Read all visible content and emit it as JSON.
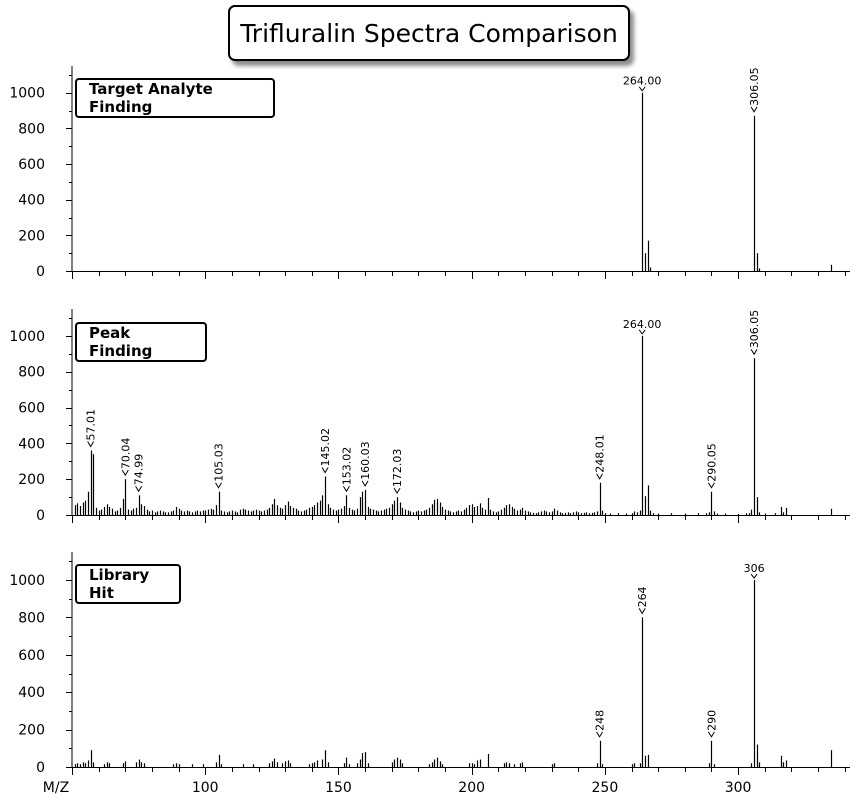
{
  "title": "Trifluralin Spectra Comparison",
  "chart_data": [
    {
      "type": "bar",
      "panel": "Target Analyte Finding",
      "x_range": [
        50,
        342
      ],
      "ylim": [
        0,
        1150
      ],
      "yticks": [
        0,
        200,
        400,
        600,
        800,
        1000
      ],
      "xticks": [
        100,
        150,
        200,
        250,
        300
      ],
      "xlabel": "M/Z",
      "peaks": [
        [
          264,
          1000
        ],
        [
          265,
          100
        ],
        [
          266,
          170
        ],
        [
          267,
          20
        ],
        [
          306,
          870
        ],
        [
          307,
          100
        ],
        [
          308,
          15
        ],
        [
          335,
          35
        ]
      ],
      "labels": [
        {
          "x": 264,
          "y": 1000,
          "text": "264.00",
          "rot": 0
        },
        {
          "x": 306,
          "y": 870,
          "text": "306.05",
          "rot": -90
        }
      ]
    },
    {
      "type": "bar",
      "panel": "Peak Finding",
      "x_range": [
        50,
        342
      ],
      "ylim": [
        0,
        1150
      ],
      "yticks": [
        0,
        200,
        400,
        600,
        800,
        1000
      ],
      "xticks": [
        100,
        150,
        200,
        250,
        300
      ],
      "xlabel": "M/Z",
      "peaks": [
        [
          51,
          55
        ],
        [
          52,
          65
        ],
        [
          53,
          50
        ],
        [
          54,
          70
        ],
        [
          55,
          80
        ],
        [
          56,
          130
        ],
        [
          57,
          360
        ],
        [
          58,
          340
        ],
        [
          59,
          40
        ],
        [
          60,
          25
        ],
        [
          61,
          30
        ],
        [
          62,
          45
        ],
        [
          63,
          60
        ],
        [
          64,
          45
        ],
        [
          65,
          35
        ],
        [
          66,
          20
        ],
        [
          67,
          25
        ],
        [
          68,
          40
        ],
        [
          69,
          90
        ],
        [
          70,
          200
        ],
        [
          71,
          30
        ],
        [
          72,
          25
        ],
        [
          73,
          35
        ],
        [
          74,
          40
        ],
        [
          75,
          110
        ],
        [
          76,
          60
        ],
        [
          77,
          50
        ],
        [
          78,
          30
        ],
        [
          79,
          20
        ],
        [
          80,
          25
        ],
        [
          81,
          15
        ],
        [
          82,
          20
        ],
        [
          83,
          25
        ],
        [
          84,
          20
        ],
        [
          85,
          15
        ],
        [
          86,
          15
        ],
        [
          87,
          20
        ],
        [
          88,
          25
        ],
        [
          89,
          45
        ],
        [
          90,
          35
        ],
        [
          91,
          25
        ],
        [
          92,
          20
        ],
        [
          93,
          25
        ],
        [
          94,
          20
        ],
        [
          95,
          15
        ],
        [
          96,
          20
        ],
        [
          97,
          25
        ],
        [
          98,
          20
        ],
        [
          99,
          25
        ],
        [
          100,
          25
        ],
        [
          101,
          30
        ],
        [
          102,
          35
        ],
        [
          103,
          30
        ],
        [
          104,
          55
        ],
        [
          105,
          130
        ],
        [
          106,
          25
        ],
        [
          107,
          20
        ],
        [
          108,
          15
        ],
        [
          109,
          20
        ],
        [
          110,
          25
        ],
        [
          111,
          20
        ],
        [
          112,
          15
        ],
        [
          113,
          30
        ],
        [
          114,
          35
        ],
        [
          115,
          30
        ],
        [
          116,
          25
        ],
        [
          117,
          20
        ],
        [
          118,
          25
        ],
        [
          119,
          30
        ],
        [
          120,
          25
        ],
        [
          121,
          20
        ],
        [
          122,
          25
        ],
        [
          123,
          30
        ],
        [
          124,
          40
        ],
        [
          125,
          60
        ],
        [
          126,
          90
        ],
        [
          127,
          55
        ],
        [
          128,
          40
        ],
        [
          129,
          35
        ],
        [
          130,
          55
        ],
        [
          131,
          75
        ],
        [
          132,
          50
        ],
        [
          133,
          40
        ],
        [
          134,
          35
        ],
        [
          135,
          25
        ],
        [
          136,
          20
        ],
        [
          137,
          25
        ],
        [
          138,
          30
        ],
        [
          139,
          40
        ],
        [
          140,
          45
        ],
        [
          141,
          55
        ],
        [
          142,
          70
        ],
        [
          143,
          80
        ],
        [
          144,
          110
        ],
        [
          145,
          215
        ],
        [
          146,
          60
        ],
        [
          147,
          40
        ],
        [
          148,
          30
        ],
        [
          149,
          25
        ],
        [
          150,
          30
        ],
        [
          151,
          35
        ],
        [
          152,
          50
        ],
        [
          153,
          110
        ],
        [
          154,
          40
        ],
        [
          155,
          30
        ],
        [
          156,
          25
        ],
        [
          157,
          35
        ],
        [
          158,
          100
        ],
        [
          159,
          130
        ],
        [
          160,
          140
        ],
        [
          161,
          45
        ],
        [
          162,
          35
        ],
        [
          163,
          30
        ],
        [
          164,
          25
        ],
        [
          165,
          20
        ],
        [
          166,
          25
        ],
        [
          167,
          30
        ],
        [
          168,
          35
        ],
        [
          169,
          40
        ],
        [
          170,
          60
        ],
        [
          171,
          80
        ],
        [
          172,
          100
        ],
        [
          173,
          70
        ],
        [
          174,
          40
        ],
        [
          175,
          30
        ],
        [
          176,
          25
        ],
        [
          177,
          20
        ],
        [
          178,
          15
        ],
        [
          179,
          20
        ],
        [
          180,
          25
        ],
        [
          181,
          20
        ],
        [
          182,
          25
        ],
        [
          183,
          30
        ],
        [
          184,
          40
        ],
        [
          185,
          60
        ],
        [
          186,
          85
        ],
        [
          187,
          90
        ],
        [
          188,
          70
        ],
        [
          189,
          45
        ],
        [
          190,
          30
        ],
        [
          191,
          25
        ],
        [
          192,
          20
        ],
        [
          193,
          15
        ],
        [
          194,
          20
        ],
        [
          195,
          25
        ],
        [
          196,
          20
        ],
        [
          197,
          30
        ],
        [
          198,
          40
        ],
        [
          199,
          55
        ],
        [
          200,
          60
        ],
        [
          201,
          45
        ],
        [
          202,
          50
        ],
        [
          203,
          65
        ],
        [
          204,
          40
        ],
        [
          205,
          30
        ],
        [
          206,
          95
        ],
        [
          207,
          30
        ],
        [
          208,
          20
        ],
        [
          209,
          15
        ],
        [
          210,
          20
        ],
        [
          211,
          30
        ],
        [
          212,
          40
        ],
        [
          213,
          55
        ],
        [
          214,
          60
        ],
        [
          215,
          45
        ],
        [
          216,
          35
        ],
        [
          217,
          25
        ],
        [
          218,
          30
        ],
        [
          219,
          40
        ],
        [
          220,
          25
        ],
        [
          221,
          20
        ],
        [
          222,
          15
        ],
        [
          223,
          12
        ],
        [
          224,
          10
        ],
        [
          225,
          15
        ],
        [
          226,
          20
        ],
        [
          227,
          25
        ],
        [
          228,
          20
        ],
        [
          229,
          15
        ],
        [
          230,
          20
        ],
        [
          231,
          35
        ],
        [
          232,
          25
        ],
        [
          233,
          15
        ],
        [
          234,
          10
        ],
        [
          235,
          12
        ],
        [
          236,
          15
        ],
        [
          237,
          10
        ],
        [
          238,
          15
        ],
        [
          239,
          20
        ],
        [
          240,
          15
        ],
        [
          241,
          10
        ],
        [
          242,
          12
        ],
        [
          243,
          15
        ],
        [
          244,
          10
        ],
        [
          245,
          12
        ],
        [
          246,
          15
        ],
        [
          247,
          20
        ],
        [
          248,
          180
        ],
        [
          249,
          25
        ],
        [
          250,
          10
        ],
        [
          252,
          8
        ],
        [
          255,
          10
        ],
        [
          258,
          8
        ],
        [
          260,
          10
        ],
        [
          261,
          20
        ],
        [
          262,
          15
        ],
        [
          263,
          25
        ],
        [
          264,
          1000
        ],
        [
          265,
          105
        ],
        [
          266,
          165
        ],
        [
          267,
          25
        ],
        [
          268,
          10
        ],
        [
          270,
          8
        ],
        [
          275,
          10
        ],
        [
          280,
          8
        ],
        [
          285,
          10
        ],
        [
          288,
          10
        ],
        [
          289,
          15
        ],
        [
          290,
          130
        ],
        [
          291,
          20
        ],
        [
          292,
          8
        ],
        [
          295,
          8
        ],
        [
          300,
          6
        ],
        [
          303,
          10
        ],
        [
          304,
          10
        ],
        [
          305,
          30
        ],
        [
          306,
          875
        ],
        [
          307,
          100
        ],
        [
          308,
          15
        ],
        [
          310,
          8
        ],
        [
          314,
          10
        ],
        [
          316,
          45
        ],
        [
          317,
          15
        ],
        [
          318,
          40
        ],
        [
          335,
          35
        ]
      ],
      "labels": [
        {
          "x": 57,
          "y": 360,
          "text": "57.01",
          "rot": -90
        },
        {
          "x": 70,
          "y": 200,
          "text": "70.04",
          "rot": -90
        },
        {
          "x": 75,
          "y": 110,
          "text": "74.99",
          "rot": -90
        },
        {
          "x": 105,
          "y": 130,
          "text": "105.03",
          "rot": -90
        },
        {
          "x": 145,
          "y": 215,
          "text": "145.02",
          "rot": -90
        },
        {
          "x": 153,
          "y": 110,
          "text": "153.02",
          "rot": -90
        },
        {
          "x": 160,
          "y": 140,
          "text": "160.03",
          "rot": -90
        },
        {
          "x": 172,
          "y": 100,
          "text": "172.03",
          "rot": -90
        },
        {
          "x": 248,
          "y": 180,
          "text": "248.01",
          "rot": -90
        },
        {
          "x": 264,
          "y": 1000,
          "text": "264.00",
          "rot": 0
        },
        {
          "x": 290,
          "y": 130,
          "text": "290.05",
          "rot": -90
        },
        {
          "x": 306,
          "y": 875,
          "text": "306.05",
          "rot": -90
        }
      ]
    },
    {
      "type": "bar",
      "panel": "Library Hit",
      "x_range": [
        50,
        342
      ],
      "ylim": [
        0,
        1150
      ],
      "yticks": [
        0,
        200,
        400,
        600,
        800,
        1000
      ],
      "xticks": [
        100,
        150,
        200,
        250,
        300
      ],
      "xlabel": "M/Z",
      "peaks": [
        [
          51,
          15
        ],
        [
          52,
          20
        ],
        [
          53,
          15
        ],
        [
          54,
          25
        ],
        [
          55,
          20
        ],
        [
          56,
          35
        ],
        [
          57,
          90
        ],
        [
          58,
          25
        ],
        [
          62,
          15
        ],
        [
          63,
          25
        ],
        [
          64,
          20
        ],
        [
          69,
          20
        ],
        [
          70,
          30
        ],
        [
          74,
          25
        ],
        [
          75,
          40
        ],
        [
          76,
          25
        ],
        [
          77,
          20
        ],
        [
          88,
          15
        ],
        [
          89,
          20
        ],
        [
          90,
          15
        ],
        [
          95,
          15
        ],
        [
          99,
          15
        ],
        [
          104,
          25
        ],
        [
          105,
          65
        ],
        [
          106,
          15
        ],
        [
          114,
          15
        ],
        [
          118,
          15
        ],
        [
          124,
          20
        ],
        [
          125,
          30
        ],
        [
          126,
          45
        ],
        [
          127,
          25
        ],
        [
          129,
          20
        ],
        [
          130,
          30
        ],
        [
          131,
          35
        ],
        [
          132,
          20
        ],
        [
          139,
          15
        ],
        [
          140,
          20
        ],
        [
          141,
          25
        ],
        [
          142,
          35
        ],
        [
          144,
          40
        ],
        [
          145,
          90
        ],
        [
          146,
          25
        ],
        [
          152,
          20
        ],
        [
          153,
          50
        ],
        [
          154,
          15
        ],
        [
          157,
          20
        ],
        [
          158,
          40
        ],
        [
          159,
          75
        ],
        [
          160,
          80
        ],
        [
          161,
          20
        ],
        [
          170,
          25
        ],
        [
          171,
          40
        ],
        [
          172,
          50
        ],
        [
          173,
          40
        ],
        [
          174,
          20
        ],
        [
          184,
          15
        ],
        [
          185,
          25
        ],
        [
          186,
          40
        ],
        [
          187,
          50
        ],
        [
          188,
          30
        ],
        [
          189,
          15
        ],
        [
          199,
          20
        ],
        [
          200,
          20
        ],
        [
          201,
          15
        ],
        [
          202,
          35
        ],
        [
          203,
          40
        ],
        [
          206,
          70
        ],
        [
          212,
          20
        ],
        [
          213,
          25
        ],
        [
          214,
          20
        ],
        [
          216,
          15
        ],
        [
          218,
          20
        ],
        [
          219,
          25
        ],
        [
          230,
          15
        ],
        [
          231,
          20
        ],
        [
          247,
          20
        ],
        [
          248,
          140
        ],
        [
          249,
          15
        ],
        [
          260,
          15
        ],
        [
          261,
          20
        ],
        [
          263,
          20
        ],
        [
          264,
          800
        ],
        [
          265,
          60
        ],
        [
          266,
          65
        ],
        [
          289,
          20
        ],
        [
          290,
          140
        ],
        [
          291,
          15
        ],
        [
          305,
          20
        ],
        [
          306,
          1000
        ],
        [
          307,
          120
        ],
        [
          308,
          25
        ],
        [
          316,
          60
        ],
        [
          317,
          25
        ],
        [
          318,
          35
        ],
        [
          335,
          90
        ]
      ],
      "labels": [
        {
          "x": 248,
          "y": 140,
          "text": "248",
          "rot": -90
        },
        {
          "x": 264,
          "y": 800,
          "text": "264",
          "rot": -90
        },
        {
          "x": 290,
          "y": 140,
          "text": "290",
          "rot": -90
        },
        {
          "x": 306,
          "y": 1000,
          "text": "306",
          "rot": 0
        }
      ]
    }
  ]
}
